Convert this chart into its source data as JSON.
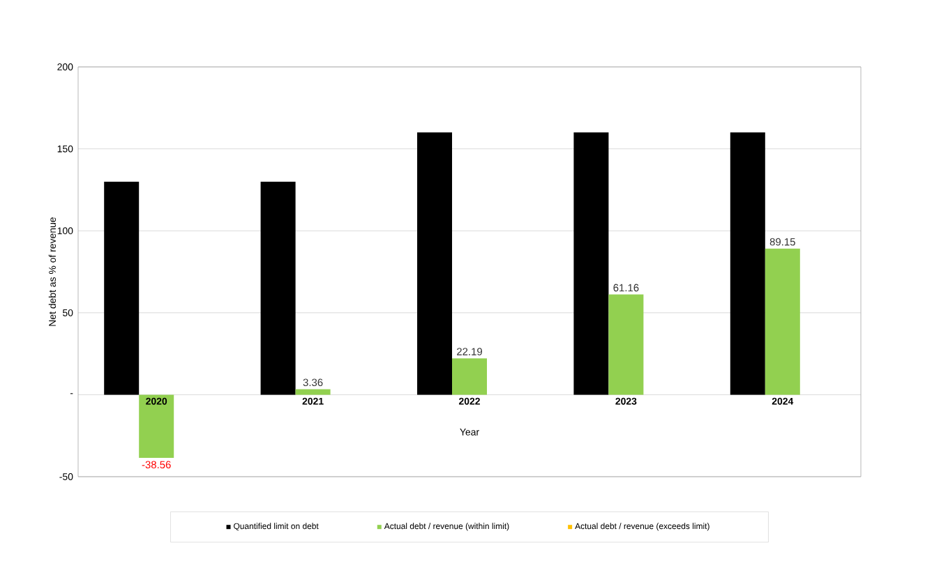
{
  "chart_data": {
    "type": "bar",
    "xlabel": "Year",
    "ylabel": "Net debt as % of revenue",
    "categories": [
      "2020",
      "2021",
      "2022",
      "2023",
      "2024"
    ],
    "series": [
      {
        "name": "Quantified limit on debt",
        "color": "#000000",
        "values": [
          130,
          130,
          160,
          160,
          160
        ]
      },
      {
        "name": "Actual debt / revenue (within limit)",
        "color": "#92d050",
        "values": [
          -38.56,
          3.36,
          22.19,
          61.16,
          89.15
        ],
        "value_labels": [
          "-38.56",
          "3.36",
          "22.19",
          "61.16",
          "89.15"
        ]
      },
      {
        "name": "Actual debt / revenue (exceeds limit)",
        "color": "#ffc000",
        "values": [
          null,
          null,
          null,
          null,
          null
        ]
      }
    ],
    "ylim": [
      -50,
      200
    ],
    "yticks": [
      -50,
      {
        "value": 0,
        "label": "-"
      },
      50,
      100,
      150,
      200
    ],
    "grid": "y",
    "legend": "bottom"
  }
}
